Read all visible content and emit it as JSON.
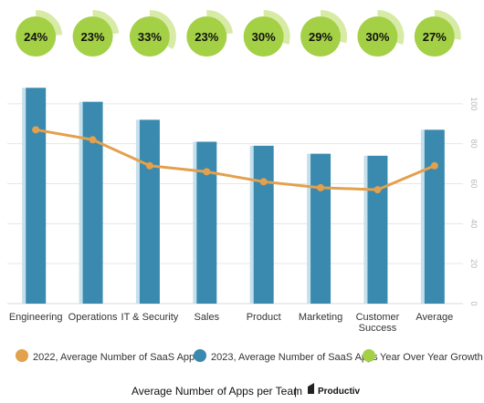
{
  "chart_data": {
    "type": "bar",
    "categories": [
      "Engineering",
      "Operations",
      "IT & Security",
      "Sales",
      "Product",
      "Marketing",
      "Customer Success",
      "Average"
    ],
    "category_lines": [
      [
        "Engineering"
      ],
      [
        "Operations"
      ],
      [
        "IT & Security"
      ],
      [
        "Sales"
      ],
      [
        "Product"
      ],
      [
        "Marketing"
      ],
      [
        "Customer",
        "Success"
      ],
      [
        "Average"
      ]
    ],
    "ylim": [
      0,
      120
    ],
    "yticks": [
      0,
      20,
      40,
      60,
      80,
      100
    ],
    "grid": true,
    "legend_position": "bottom",
    "series": [
      {
        "name": "2022, Average Number of SaaS Apps",
        "kind": "line",
        "color": "#E3A04D",
        "values": [
          87,
          82,
          69,
          66,
          61,
          58,
          57,
          69
        ]
      },
      {
        "name": "2023, Average Number of SaaS Apps",
        "kind": "bar",
        "color": "#3A89AE",
        "shade": "#C5E0EC",
        "values": [
          108,
          101,
          92,
          81,
          79,
          75,
          74,
          87
        ]
      },
      {
        "name": "Year Over Year Growth",
        "kind": "badge",
        "color": "#A4D046",
        "ring": "#D7EBA6",
        "values": [
          24,
          23,
          33,
          23,
          30,
          29,
          30,
          27
        ],
        "labels": [
          "24%",
          "23%",
          "33%",
          "23%",
          "30%",
          "29%",
          "30%",
          "27%"
        ]
      }
    ]
  },
  "footer": {
    "title": "Average Number of Apps per Team",
    "separator": "|",
    "brand": "Productiv"
  }
}
